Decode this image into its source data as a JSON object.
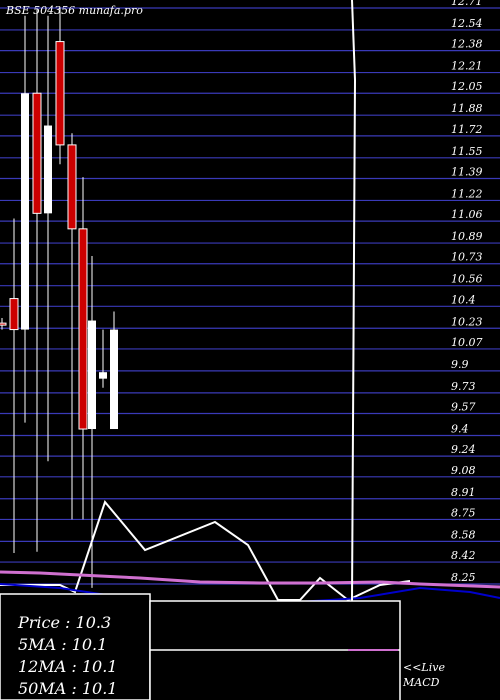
{
  "chart_data": {
    "type": "candlestick",
    "title": "BSE 504356  munafa.pro",
    "y_tick_labels": [
      "12.71",
      "12.54",
      "12.38",
      "12.21",
      "12.05",
      "11.88",
      "11.72",
      "11.55",
      "11.39",
      "11.22",
      "11.06",
      "10.89",
      "10.73",
      "10.56",
      "10.4",
      "10.23",
      "10.07",
      "9.9",
      "9.73",
      "9.57",
      "9.4",
      "9.24",
      "9.08",
      "8.91",
      "8.75",
      "8.58",
      "8.42",
      "8.25"
    ],
    "ylim": [
      8.2,
      12.75
    ],
    "grid": true,
    "colors": {
      "up": "#ffffff",
      "down": "#cc0000",
      "grid": "#3a3ab8",
      "ma": "#d070d0",
      "macd": "#0000cc"
    },
    "candles": [
      {
        "open": 10.27,
        "high": 10.31,
        "low": 10.22,
        "close": 10.26
      },
      {
        "open": 10.46,
        "high": 11.08,
        "low": 8.49,
        "close": 10.22
      },
      {
        "open": 10.22,
        "high": 12.65,
        "low": 9.5,
        "close": 12.05
      },
      {
        "open": 12.05,
        "high": 12.7,
        "low": 8.5,
        "close": 11.12
      },
      {
        "open": 11.12,
        "high": 12.65,
        "low": 9.2,
        "close": 11.8
      },
      {
        "open": 12.45,
        "high": 12.71,
        "low": 11.5,
        "close": 11.65
      },
      {
        "open": 11.65,
        "high": 11.74,
        "low": 8.75,
        "close": 11.0
      },
      {
        "open": 11.0,
        "high": 11.4,
        "low": 8.75,
        "close": 9.45
      },
      {
        "open": 9.45,
        "high": 10.79,
        "low": 8.22,
        "close": 10.29
      },
      {
        "open": 9.84,
        "high": 10.22,
        "low": 9.77,
        "close": 9.89
      },
      {
        "open": 9.45,
        "high": 10.36,
        "low": 9.45,
        "close": 10.22
      }
    ],
    "vertical_line_price": 12.5
  },
  "info": {
    "price": "Price   : 10.3",
    "ma5": "5MA : 10.1",
    "ma12": "12MA : 10.1",
    "ma50": "50MA : 10.1"
  },
  "live": {
    "line1": "<<Live",
    "line2": "MACD"
  }
}
